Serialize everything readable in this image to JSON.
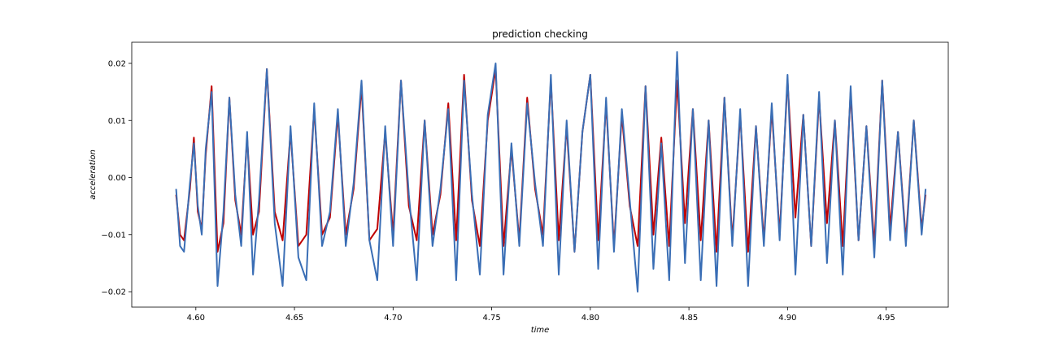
{
  "chart_data": {
    "type": "line",
    "title": "prediction checking",
    "xlabel": "time",
    "ylabel": "acceleration",
    "xlim": [
      4.5675,
      4.9815
    ],
    "ylim": [
      -0.0227,
      0.0237
    ],
    "x_ticks": [
      4.6,
      4.65,
      4.7,
      4.75,
      4.8,
      4.85,
      4.9,
      4.95
    ],
    "x_tick_labels": [
      "4.60",
      "4.65",
      "4.70",
      "4.75",
      "4.80",
      "4.85",
      "4.90",
      "4.95"
    ],
    "y_ticks": [
      -0.02,
      -0.01,
      0.0,
      0.01,
      0.02
    ],
    "y_tick_labels": [
      "−0.02",
      "−0.01",
      "0.00",
      "0.01",
      "0.02"
    ],
    "grid": false,
    "legend": "none",
    "series": [
      {
        "color": "#c00000",
        "x": [
          4.59,
          4.592,
          4.594,
          4.597,
          4.599,
          4.601,
          4.603,
          4.605,
          4.608,
          4.611,
          4.614,
          4.617,
          4.62,
          4.623,
          4.626,
          4.629,
          4.632,
          4.636,
          4.64,
          4.644,
          4.648,
          4.652,
          4.656,
          4.66,
          4.664,
          4.668,
          4.672,
          4.676,
          4.68,
          4.684,
          4.688,
          4.692,
          4.696,
          4.7,
          4.704,
          4.708,
          4.712,
          4.716,
          4.72,
          4.724,
          4.728,
          4.732,
          4.736,
          4.74,
          4.744,
          4.748,
          4.752,
          4.756,
          4.76,
          4.764,
          4.768,
          4.772,
          4.776,
          4.78,
          4.784,
          4.788,
          4.792,
          4.796,
          4.8,
          4.804,
          4.808,
          4.812,
          4.816,
          4.82,
          4.824,
          4.828,
          4.832,
          4.836,
          4.84,
          4.844,
          4.848,
          4.852,
          4.856,
          4.86,
          4.864,
          4.868,
          4.872,
          4.876,
          4.88,
          4.884,
          4.888,
          4.892,
          4.896,
          4.9,
          4.904,
          4.908,
          4.912,
          4.916,
          4.92,
          4.924,
          4.928,
          4.932,
          4.936,
          4.94,
          4.944,
          4.948,
          4.952,
          4.956,
          4.96,
          4.964,
          4.968,
          4.97
        ],
        "values": [
          -0.003,
          -0.01,
          -0.011,
          -0.002,
          0.007,
          -0.006,
          -0.009,
          0.004,
          0.016,
          -0.013,
          -0.008,
          0.014,
          -0.004,
          -0.01,
          0.007,
          -0.01,
          -0.006,
          0.019,
          -0.006,
          -0.011,
          0.008,
          -0.012,
          -0.01,
          0.012,
          -0.01,
          -0.007,
          0.011,
          -0.01,
          -0.002,
          0.016,
          -0.011,
          -0.009,
          0.008,
          -0.01,
          0.017,
          -0.005,
          -0.011,
          0.01,
          -0.01,
          -0.003,
          0.013,
          -0.011,
          0.018,
          -0.004,
          -0.012,
          0.01,
          0.019,
          -0.012,
          0.005,
          -0.011,
          0.014,
          -0.002,
          -0.01,
          0.017,
          -0.011,
          0.009,
          -0.013,
          0.008,
          0.018,
          -0.011,
          0.013,
          -0.012,
          0.011,
          -0.005,
          -0.012,
          0.016,
          -0.01,
          0.007,
          -0.012,
          0.017,
          -0.008,
          0.012,
          -0.011,
          0.01,
          -0.013,
          0.014,
          -0.011,
          0.011,
          -0.013,
          0.009,
          -0.011,
          0.012,
          -0.01,
          0.017,
          -0.007,
          0.011,
          -0.012,
          0.014,
          -0.008,
          0.01,
          -0.012,
          0.015,
          -0.011,
          0.009,
          -0.012,
          0.017,
          -0.009,
          0.008,
          -0.011,
          0.01,
          -0.009,
          -0.003
        ]
      },
      {
        "color": "#3a6eb5",
        "x": [
          4.59,
          4.592,
          4.594,
          4.597,
          4.599,
          4.601,
          4.603,
          4.605,
          4.608,
          4.611,
          4.614,
          4.617,
          4.62,
          4.623,
          4.626,
          4.629,
          4.632,
          4.636,
          4.64,
          4.644,
          4.648,
          4.652,
          4.656,
          4.66,
          4.664,
          4.668,
          4.672,
          4.676,
          4.68,
          4.684,
          4.688,
          4.692,
          4.696,
          4.7,
          4.704,
          4.708,
          4.712,
          4.716,
          4.72,
          4.724,
          4.728,
          4.732,
          4.736,
          4.74,
          4.744,
          4.748,
          4.752,
          4.756,
          4.76,
          4.764,
          4.768,
          4.772,
          4.776,
          4.78,
          4.784,
          4.788,
          4.792,
          4.796,
          4.8,
          4.804,
          4.808,
          4.812,
          4.816,
          4.82,
          4.824,
          4.828,
          4.832,
          4.836,
          4.84,
          4.844,
          4.848,
          4.852,
          4.856,
          4.86,
          4.864,
          4.868,
          4.872,
          4.876,
          4.88,
          4.884,
          4.888,
          4.892,
          4.896,
          4.9,
          4.904,
          4.908,
          4.912,
          4.916,
          4.92,
          4.924,
          4.928,
          4.932,
          4.936,
          4.94,
          4.944,
          4.948,
          4.952,
          4.956,
          4.96,
          4.964,
          4.968,
          4.97
        ],
        "values": [
          -0.002,
          -0.012,
          -0.013,
          -0.001,
          0.006,
          -0.005,
          -0.01,
          0.005,
          0.015,
          -0.019,
          -0.006,
          0.014,
          -0.003,
          -0.012,
          0.008,
          -0.017,
          -0.004,
          0.019,
          -0.008,
          -0.019,
          0.009,
          -0.014,
          -0.018,
          0.013,
          -0.012,
          -0.006,
          0.012,
          -0.012,
          -0.001,
          0.017,
          -0.011,
          -0.018,
          0.009,
          -0.012,
          0.017,
          -0.003,
          -0.018,
          0.01,
          -0.012,
          -0.002,
          0.012,
          -0.018,
          0.017,
          -0.003,
          -0.017,
          0.011,
          0.02,
          -0.017,
          0.006,
          -0.012,
          0.013,
          -0.001,
          -0.012,
          0.018,
          -0.017,
          0.01,
          -0.013,
          0.008,
          0.018,
          -0.016,
          0.014,
          -0.013,
          0.012,
          -0.004,
          -0.02,
          0.016,
          -0.016,
          0.006,
          -0.018,
          0.022,
          -0.015,
          0.012,
          -0.018,
          0.01,
          -0.019,
          0.014,
          -0.012,
          0.012,
          -0.019,
          0.009,
          -0.012,
          0.013,
          -0.011,
          0.018,
          -0.017,
          0.011,
          -0.012,
          0.015,
          -0.015,
          0.01,
          -0.017,
          0.016,
          -0.011,
          0.009,
          -0.014,
          0.017,
          -0.011,
          0.008,
          -0.012,
          0.01,
          -0.01,
          -0.002
        ]
      }
    ]
  }
}
